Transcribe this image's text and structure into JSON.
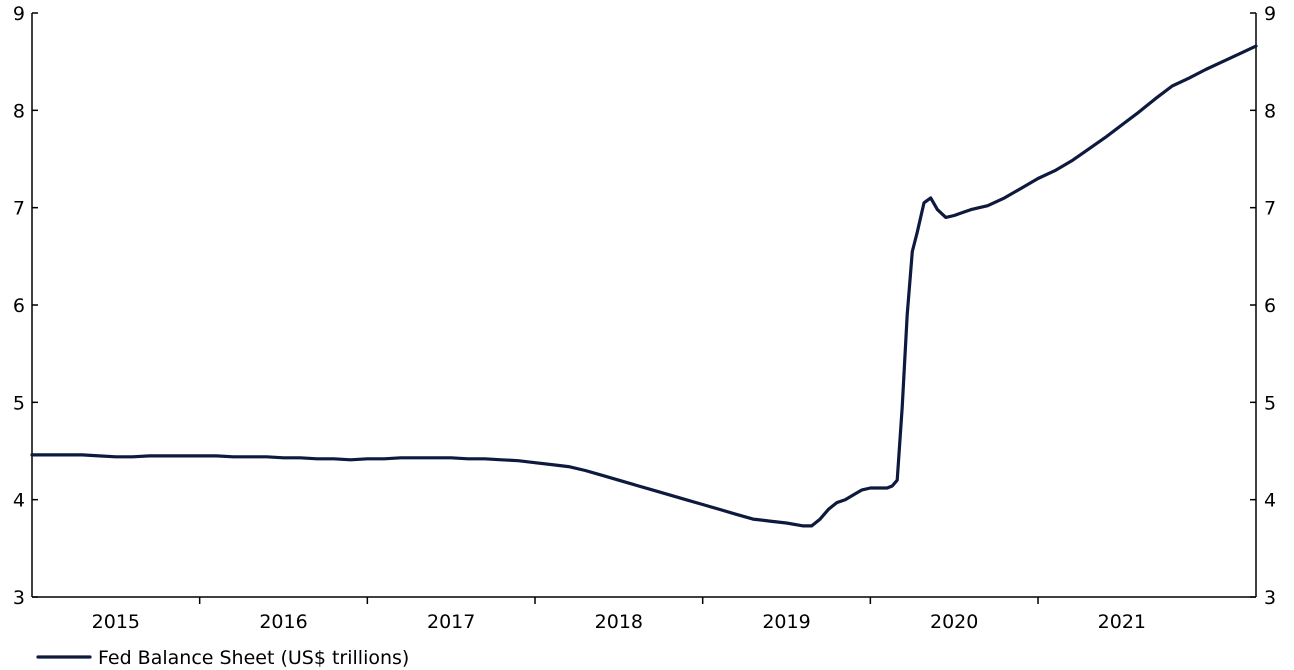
{
  "chart_data": {
    "type": "line",
    "title": "",
    "xlabel": "",
    "ylabel": "",
    "ylim": [
      3,
      9
    ],
    "xlim": [
      2014.6,
      2021.9
    ],
    "y_ticks": [
      3,
      4,
      5,
      6,
      7,
      8,
      9
    ],
    "y_tick_labels": [
      "3",
      "4",
      "5",
      "6",
      "7",
      "8",
      "9"
    ],
    "x_category_labels": [
      "2015",
      "2016",
      "2017",
      "2018",
      "2019",
      "2020",
      "2021"
    ],
    "x_category_centers": [
      2015.1,
      2016.1,
      2017.1,
      2018.1,
      2019.1,
      2020.1,
      2021.1
    ],
    "x_ticks": [
      2015.6,
      2016.6,
      2017.6,
      2018.6,
      2019.6,
      2020.6
    ],
    "grid": false,
    "right_axis": true,
    "legend_position": "bottom-left",
    "series": [
      {
        "name": "Fed Balance Sheet (US$ trillions)",
        "color": "#0d1a3d",
        "x": [
          2014.6,
          2014.75,
          2014.9,
          2015.0,
          2015.1,
          2015.2,
          2015.3,
          2015.4,
          2015.5,
          2015.6,
          2015.7,
          2015.8,
          2015.9,
          2016.0,
          2016.1,
          2016.2,
          2016.3,
          2016.4,
          2016.5,
          2016.6,
          2016.7,
          2016.8,
          2016.9,
          2017.0,
          2017.1,
          2017.2,
          2017.3,
          2017.4,
          2017.5,
          2017.6,
          2017.7,
          2017.8,
          2017.9,
          2018.0,
          2018.1,
          2018.2,
          2018.3,
          2018.4,
          2018.5,
          2018.6,
          2018.7,
          2018.8,
          2018.9,
          2019.0,
          2019.1,
          2019.2,
          2019.25,
          2019.3,
          2019.35,
          2019.4,
          2019.45,
          2019.5,
          2019.55,
          2019.6,
          2019.65,
          2019.7,
          2019.73,
          2019.76,
          2019.79,
          2019.82,
          2019.85,
          2019.88,
          2019.92,
          2019.96,
          2020.0,
          2020.05,
          2020.1,
          2020.15,
          2020.2,
          2020.3,
          2020.4,
          2020.5,
          2020.6,
          2020.7,
          2020.8,
          2020.9,
          2021.0,
          2021.1,
          2021.2,
          2021.3,
          2021.4,
          2021.5,
          2021.6,
          2021.7,
          2021.8,
          2021.9
        ],
        "y": [
          4.46,
          4.46,
          4.46,
          4.45,
          4.44,
          4.44,
          4.45,
          4.45,
          4.45,
          4.45,
          4.45,
          4.44,
          4.44,
          4.44,
          4.43,
          4.43,
          4.42,
          4.42,
          4.41,
          4.42,
          4.42,
          4.43,
          4.43,
          4.43,
          4.43,
          4.42,
          4.42,
          4.41,
          4.4,
          4.38,
          4.36,
          4.34,
          4.3,
          4.25,
          4.2,
          4.15,
          4.1,
          4.05,
          4.0,
          3.95,
          3.9,
          3.85,
          3.8,
          3.78,
          3.76,
          3.73,
          3.73,
          3.8,
          3.9,
          3.97,
          4.0,
          4.05,
          4.1,
          4.12,
          4.12,
          4.12,
          4.14,
          4.2,
          4.95,
          5.9,
          6.55,
          6.75,
          7.05,
          7.1,
          6.98,
          6.9,
          6.92,
          6.95,
          6.98,
          7.02,
          7.1,
          7.2,
          7.3,
          7.38,
          7.48,
          7.6,
          7.72,
          7.85,
          7.98,
          8.12,
          8.25,
          8.33,
          8.42,
          8.5,
          8.58,
          8.66
        ]
      }
    ]
  }
}
